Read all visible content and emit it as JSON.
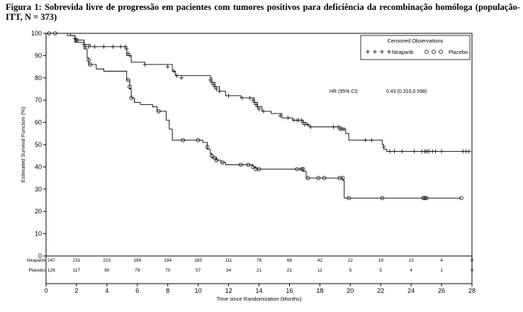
{
  "figure": {
    "title": "Figura 1: Sobrevida livre de progressão em pacientes com tumores positivos para deficiência da recombinação homóloga (população- ITT, N = 373)"
  },
  "chart_data": {
    "type": "line",
    "subtype": "kaplan-meier",
    "xlabel": "Time since Randomization (Months)",
    "ylabel": "Estimated Survival Function (%)",
    "xlim": [
      0,
      28
    ],
    "ylim": [
      0,
      100
    ],
    "xticks": [
      0,
      2,
      4,
      6,
      8,
      10,
      12,
      14,
      16,
      18,
      20,
      22,
      24,
      26,
      28
    ],
    "yticks": [
      0,
      10,
      20,
      30,
      40,
      50,
      60,
      70,
      80,
      90,
      100
    ],
    "grid": false,
    "legend": {
      "title": "Censored Observations",
      "position": "top-right",
      "entries": [
        {
          "label": "Niraparib",
          "marker": "plus"
        },
        {
          "label": "Placebo",
          "marker": "circle"
        }
      ]
    },
    "annotation": {
      "label": "HR (95% CI)",
      "value": "0.43 (0.310,0.598)"
    },
    "series": [
      {
        "name": "Niraparib",
        "marker": "plus",
        "steps": [
          [
            0,
            100
          ],
          [
            1.4,
            99
          ],
          [
            1.9,
            97
          ],
          [
            2.5,
            95
          ],
          [
            2.9,
            94
          ],
          [
            5.3,
            90
          ],
          [
            5.6,
            87
          ],
          [
            6.5,
            86
          ],
          [
            8.3,
            83
          ],
          [
            8.5,
            81
          ],
          [
            10.8,
            80
          ],
          [
            10.9,
            78
          ],
          [
            11.1,
            76
          ],
          [
            11.4,
            74
          ],
          [
            11.8,
            72
          ],
          [
            12.8,
            71
          ],
          [
            13.7,
            69
          ],
          [
            13.9,
            67
          ],
          [
            14.2,
            65
          ],
          [
            14.8,
            64
          ],
          [
            15.5,
            62
          ],
          [
            16.2,
            61
          ],
          [
            16.9,
            60
          ],
          [
            17.1,
            59
          ],
          [
            17.3,
            58
          ],
          [
            19.4,
            57
          ],
          [
            19.7,
            55
          ],
          [
            19.9,
            52
          ],
          [
            22.1,
            50
          ],
          [
            22.2,
            48
          ],
          [
            22.4,
            47
          ]
        ],
        "censored": [
          [
            1.9,
            97.5
          ],
          [
            2.0,
            97
          ],
          [
            2.5,
            95
          ],
          [
            2.6,
            94
          ],
          [
            2.8,
            94
          ],
          [
            3.2,
            94
          ],
          [
            3.8,
            94
          ],
          [
            4.4,
            94
          ],
          [
            4.9,
            94
          ],
          [
            5.2,
            94
          ],
          [
            5.3,
            93
          ],
          [
            5.4,
            91
          ],
          [
            5.5,
            90
          ],
          [
            6.5,
            86
          ],
          [
            8.0,
            85
          ],
          [
            8.4,
            83
          ],
          [
            8.6,
            81
          ],
          [
            8.9,
            80
          ],
          [
            10.8,
            79
          ],
          [
            10.9,
            78
          ],
          [
            11.0,
            77
          ],
          [
            11.1,
            76
          ],
          [
            11.2,
            75
          ],
          [
            11.4,
            74
          ],
          [
            12.0,
            72
          ],
          [
            12.9,
            71
          ],
          [
            13.4,
            71
          ],
          [
            13.6,
            70
          ],
          [
            13.7,
            69
          ],
          [
            13.8,
            68
          ],
          [
            13.9,
            67
          ],
          [
            14.0,
            66
          ],
          [
            14.3,
            65
          ],
          [
            15.4,
            63
          ],
          [
            15.9,
            62
          ],
          [
            16.3,
            61
          ],
          [
            16.5,
            61
          ],
          [
            16.6,
            61
          ],
          [
            16.8,
            61
          ],
          [
            16.9,
            60
          ],
          [
            17.0,
            59
          ],
          [
            17.2,
            59
          ],
          [
            17.4,
            58
          ],
          [
            18.9,
            58
          ],
          [
            19.2,
            58
          ],
          [
            19.3,
            57
          ],
          [
            19.4,
            57
          ],
          [
            19.5,
            57
          ],
          [
            19.6,
            57
          ],
          [
            21.0,
            52
          ],
          [
            21.4,
            52
          ],
          [
            22.2,
            49
          ],
          [
            22.6,
            47
          ],
          [
            22.9,
            47
          ],
          [
            23.4,
            47
          ],
          [
            24.2,
            47
          ],
          [
            24.7,
            47
          ],
          [
            24.9,
            47
          ],
          [
            25.0,
            47
          ],
          [
            25.1,
            47
          ],
          [
            25.2,
            47
          ],
          [
            25.4,
            47
          ],
          [
            25.6,
            47
          ],
          [
            26.0,
            47
          ],
          [
            27.4,
            47
          ],
          [
            27.6,
            47
          ],
          [
            27.8,
            47
          ]
        ]
      },
      {
        "name": "Placebo",
        "marker": "circle",
        "steps": [
          [
            0,
            100
          ],
          [
            1.6,
            99
          ],
          [
            1.9,
            96
          ],
          [
            2.5,
            93
          ],
          [
            2.7,
            89
          ],
          [
            2.8,
            86
          ],
          [
            3.3,
            84
          ],
          [
            3.8,
            83
          ],
          [
            5.3,
            79
          ],
          [
            5.5,
            75
          ],
          [
            5.6,
            71
          ],
          [
            5.8,
            69
          ],
          [
            6.2,
            68
          ],
          [
            7.0,
            67
          ],
          [
            7.3,
            65
          ],
          [
            7.9,
            61
          ],
          [
            8.1,
            57
          ],
          [
            8.3,
            52
          ],
          [
            10.3,
            51
          ],
          [
            10.6,
            48
          ],
          [
            10.8,
            46
          ],
          [
            10.9,
            44
          ],
          [
            11.2,
            43
          ],
          [
            11.5,
            42
          ],
          [
            11.8,
            41
          ],
          [
            13.6,
            40
          ],
          [
            13.8,
            39
          ],
          [
            16.9,
            38
          ],
          [
            17.1,
            35
          ],
          [
            19.5,
            34
          ],
          [
            19.6,
            26
          ]
        ],
        "censored": [
          [
            0.2,
            100
          ],
          [
            0.6,
            100
          ],
          [
            2.0,
            97
          ],
          [
            2.8,
            88
          ],
          [
            2.9,
            86
          ],
          [
            5.4,
            79
          ],
          [
            5.5,
            76
          ],
          [
            5.6,
            71
          ],
          [
            7.4,
            65
          ],
          [
            9.0,
            52
          ],
          [
            10.0,
            52
          ],
          [
            10.6,
            49
          ],
          [
            10.9,
            45
          ],
          [
            11.1,
            44
          ],
          [
            11.2,
            43
          ],
          [
            11.6,
            42
          ],
          [
            12.8,
            41
          ],
          [
            13.3,
            41
          ],
          [
            13.6,
            40
          ],
          [
            13.8,
            39
          ],
          [
            14.0,
            39
          ],
          [
            16.5,
            39
          ],
          [
            16.8,
            39
          ],
          [
            16.9,
            39
          ],
          [
            17.2,
            35
          ],
          [
            17.9,
            35
          ],
          [
            18.3,
            35
          ],
          [
            19.3,
            35
          ],
          [
            19.5,
            35
          ],
          [
            19.9,
            26
          ],
          [
            22.1,
            26
          ],
          [
            24.8,
            26
          ],
          [
            24.9,
            26
          ],
          [
            25.0,
            26
          ],
          [
            27.3,
            26
          ]
        ]
      }
    ],
    "at_risk": {
      "times": [
        0,
        2,
        4,
        6,
        8,
        10,
        12,
        14,
        16,
        18,
        20,
        22,
        24,
        26,
        28
      ],
      "rows": [
        {
          "label": "Niraparib",
          "counts": [
            "247",
            "231",
            "215",
            "189",
            "194",
            "183",
            "111",
            "76",
            "68",
            "42",
            "22",
            "19",
            "13",
            "4",
            "0"
          ]
        },
        {
          "label": "Placebo",
          "counts": [
            "126",
            "117",
            "90",
            "79",
            "70",
            "57",
            "34",
            "21",
            "21",
            "11",
            "5",
            "5",
            "4",
            "1",
            "0"
          ]
        }
      ]
    }
  }
}
